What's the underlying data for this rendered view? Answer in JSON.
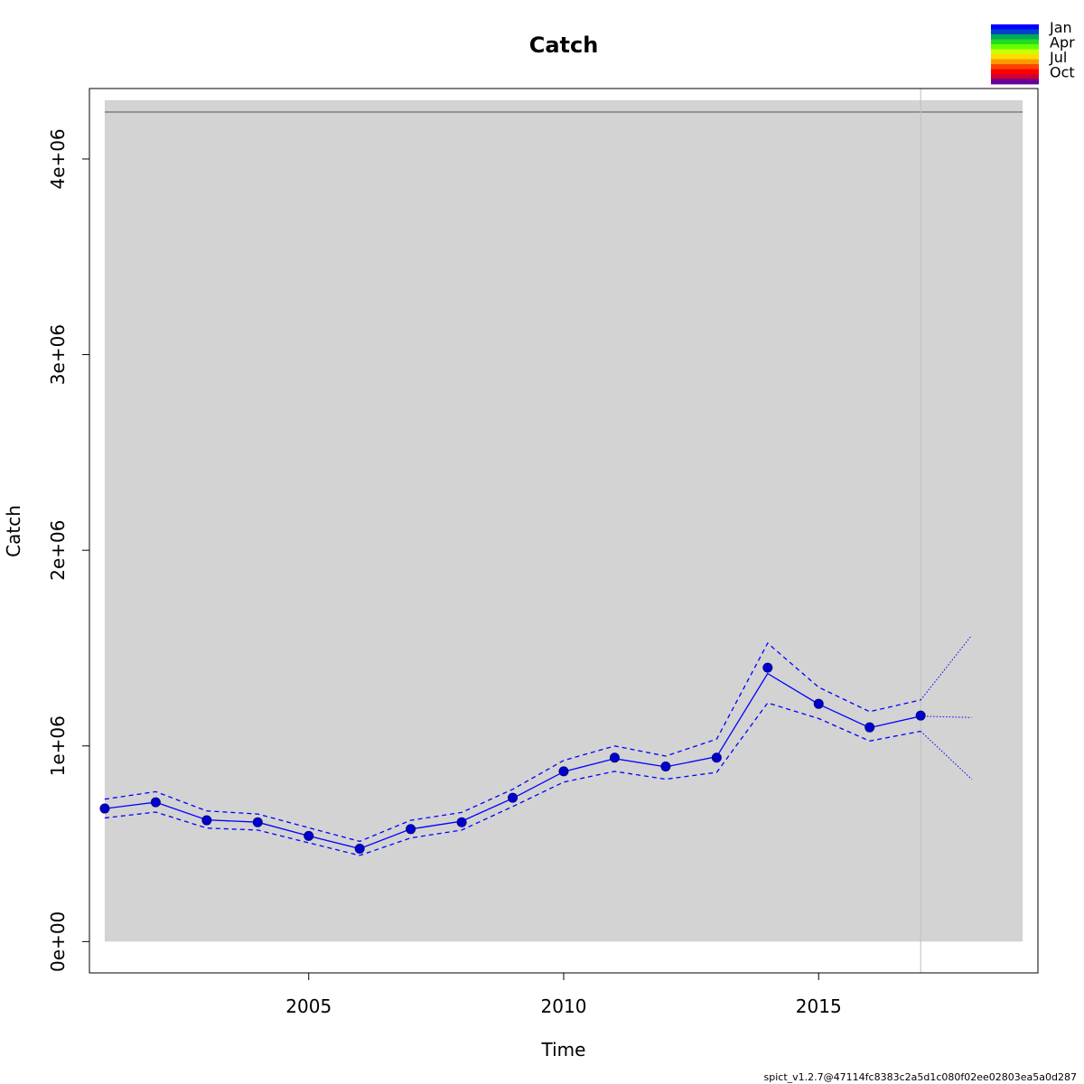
{
  "chart_data": {
    "type": "line",
    "title": "Catch",
    "xlabel": "Time",
    "ylabel": "Catch",
    "xlim": [
      2000.7,
      2019.3
    ],
    "ylim": [
      -160000,
      4360000
    ],
    "x_ticks": [
      2005,
      2010,
      2015
    ],
    "x_tick_labels": [
      "2005",
      "2010",
      "2015"
    ],
    "y_ticks": [
      0,
      1000000,
      2000000,
      3000000,
      4000000
    ],
    "y_tick_labels": [
      "0e+00",
      "1e+06",
      "2e+06",
      "3e+06",
      "4e+06"
    ],
    "shaded_region": {
      "x": [
        2001,
        2019
      ],
      "y": [
        0,
        4300000
      ]
    },
    "reference_line_y": 4240000,
    "vertical_line_x": 2017,
    "observed": {
      "x": [
        2001,
        2002,
        2003,
        2004,
        2005,
        2006,
        2007,
        2008,
        2009,
        2010,
        2011,
        2012,
        2013,
        2014,
        2015,
        2016,
        2017
      ],
      "y": [
        680000,
        712000,
        620000,
        610000,
        540000,
        475000,
        575000,
        610000,
        735000,
        870000,
        940000,
        895000,
        940000,
        1400000,
        1215000,
        1095000,
        1155000
      ]
    },
    "estimate": {
      "x": [
        2001,
        2002,
        2003,
        2004,
        2005,
        2006,
        2007,
        2008,
        2009,
        2010,
        2011,
        2012,
        2013,
        2014,
        2015,
        2016,
        2017
      ],
      "y": [
        680000,
        712000,
        622000,
        610000,
        540000,
        475000,
        575000,
        615000,
        732000,
        868000,
        935000,
        893000,
        945000,
        1370000,
        1213000,
        1093000,
        1152000
      ]
    },
    "upper_ci": {
      "x": [
        2001,
        2002,
        2003,
        2004,
        2005,
        2006,
        2007,
        2008,
        2009,
        2010,
        2011,
        2012,
        2013,
        2014,
        2015,
        2016,
        2017
      ],
      "y": [
        728000,
        766000,
        668000,
        652000,
        582000,
        512000,
        620000,
        660000,
        778000,
        926000,
        1000000,
        948000,
        1035000,
        1525000,
        1300000,
        1175000,
        1235000
      ]
    },
    "lower_ci": {
      "x": [
        2001,
        2002,
        2003,
        2004,
        2005,
        2006,
        2007,
        2008,
        2009,
        2010,
        2011,
        2012,
        2013,
        2014,
        2015,
        2016,
        2017
      ],
      "y": [
        632000,
        662000,
        580000,
        570000,
        505000,
        440000,
        530000,
        570000,
        690000,
        815000,
        870000,
        830000,
        865000,
        1220000,
        1140000,
        1025000,
        1075000
      ]
    },
    "forecast": {
      "x": [
        2017,
        2018
      ],
      "y": [
        1152000,
        1145000
      ]
    },
    "forecast_upper": {
      "x": [
        2017,
        2018
      ],
      "y": [
        1235000,
        1565000
      ]
    },
    "forecast_lower": {
      "x": [
        2017,
        2018
      ],
      "y": [
        1075000,
        830000
      ]
    },
    "colors": {
      "series": "#0000ff",
      "point_fill": "#0000cd",
      "point_stroke": "#00008b",
      "shade": "#d3d3d3",
      "reference_line": "#808080",
      "vertical_line": "#bebebe",
      "axis": "#000000"
    },
    "legend": {
      "position": "top-right",
      "labels": [
        "Jan",
        "Apr",
        "Jul",
        "Oct"
      ],
      "swatches": [
        "#0000ff",
        "#0044cc",
        "#00aa55",
        "#22dd22",
        "#66ff00",
        "#ccff00",
        "#ffdd00",
        "#ff9900",
        "#ff4400",
        "#ff0000",
        "#cc0033",
        "#660099"
      ]
    }
  },
  "footer_text": "spict_v1.2.7@47114fc8383c2a5d1c080f02ee02803ea5a0d287"
}
